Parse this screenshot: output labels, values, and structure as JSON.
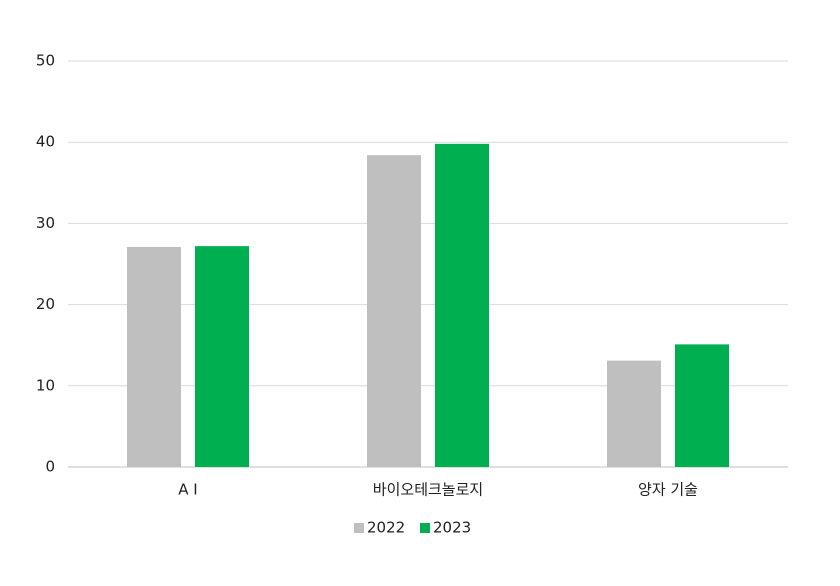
{
  "chart_data": {
    "type": "bar",
    "categories": [
      "A I",
      "바이오테크놀로지",
      "양자 기술"
    ],
    "series": [
      {
        "name": "2022",
        "color": "#bfbfbf",
        "values": [
          27.1,
          38.4,
          13.1
        ]
      },
      {
        "name": "2023",
        "color": "#00b050",
        "values": [
          27.2,
          39.8,
          15.1
        ]
      }
    ],
    "ylim": [
      0,
      50
    ],
    "yticks": [
      0,
      10,
      20,
      30,
      40,
      50
    ],
    "grid": true,
    "legend": "bottom"
  }
}
